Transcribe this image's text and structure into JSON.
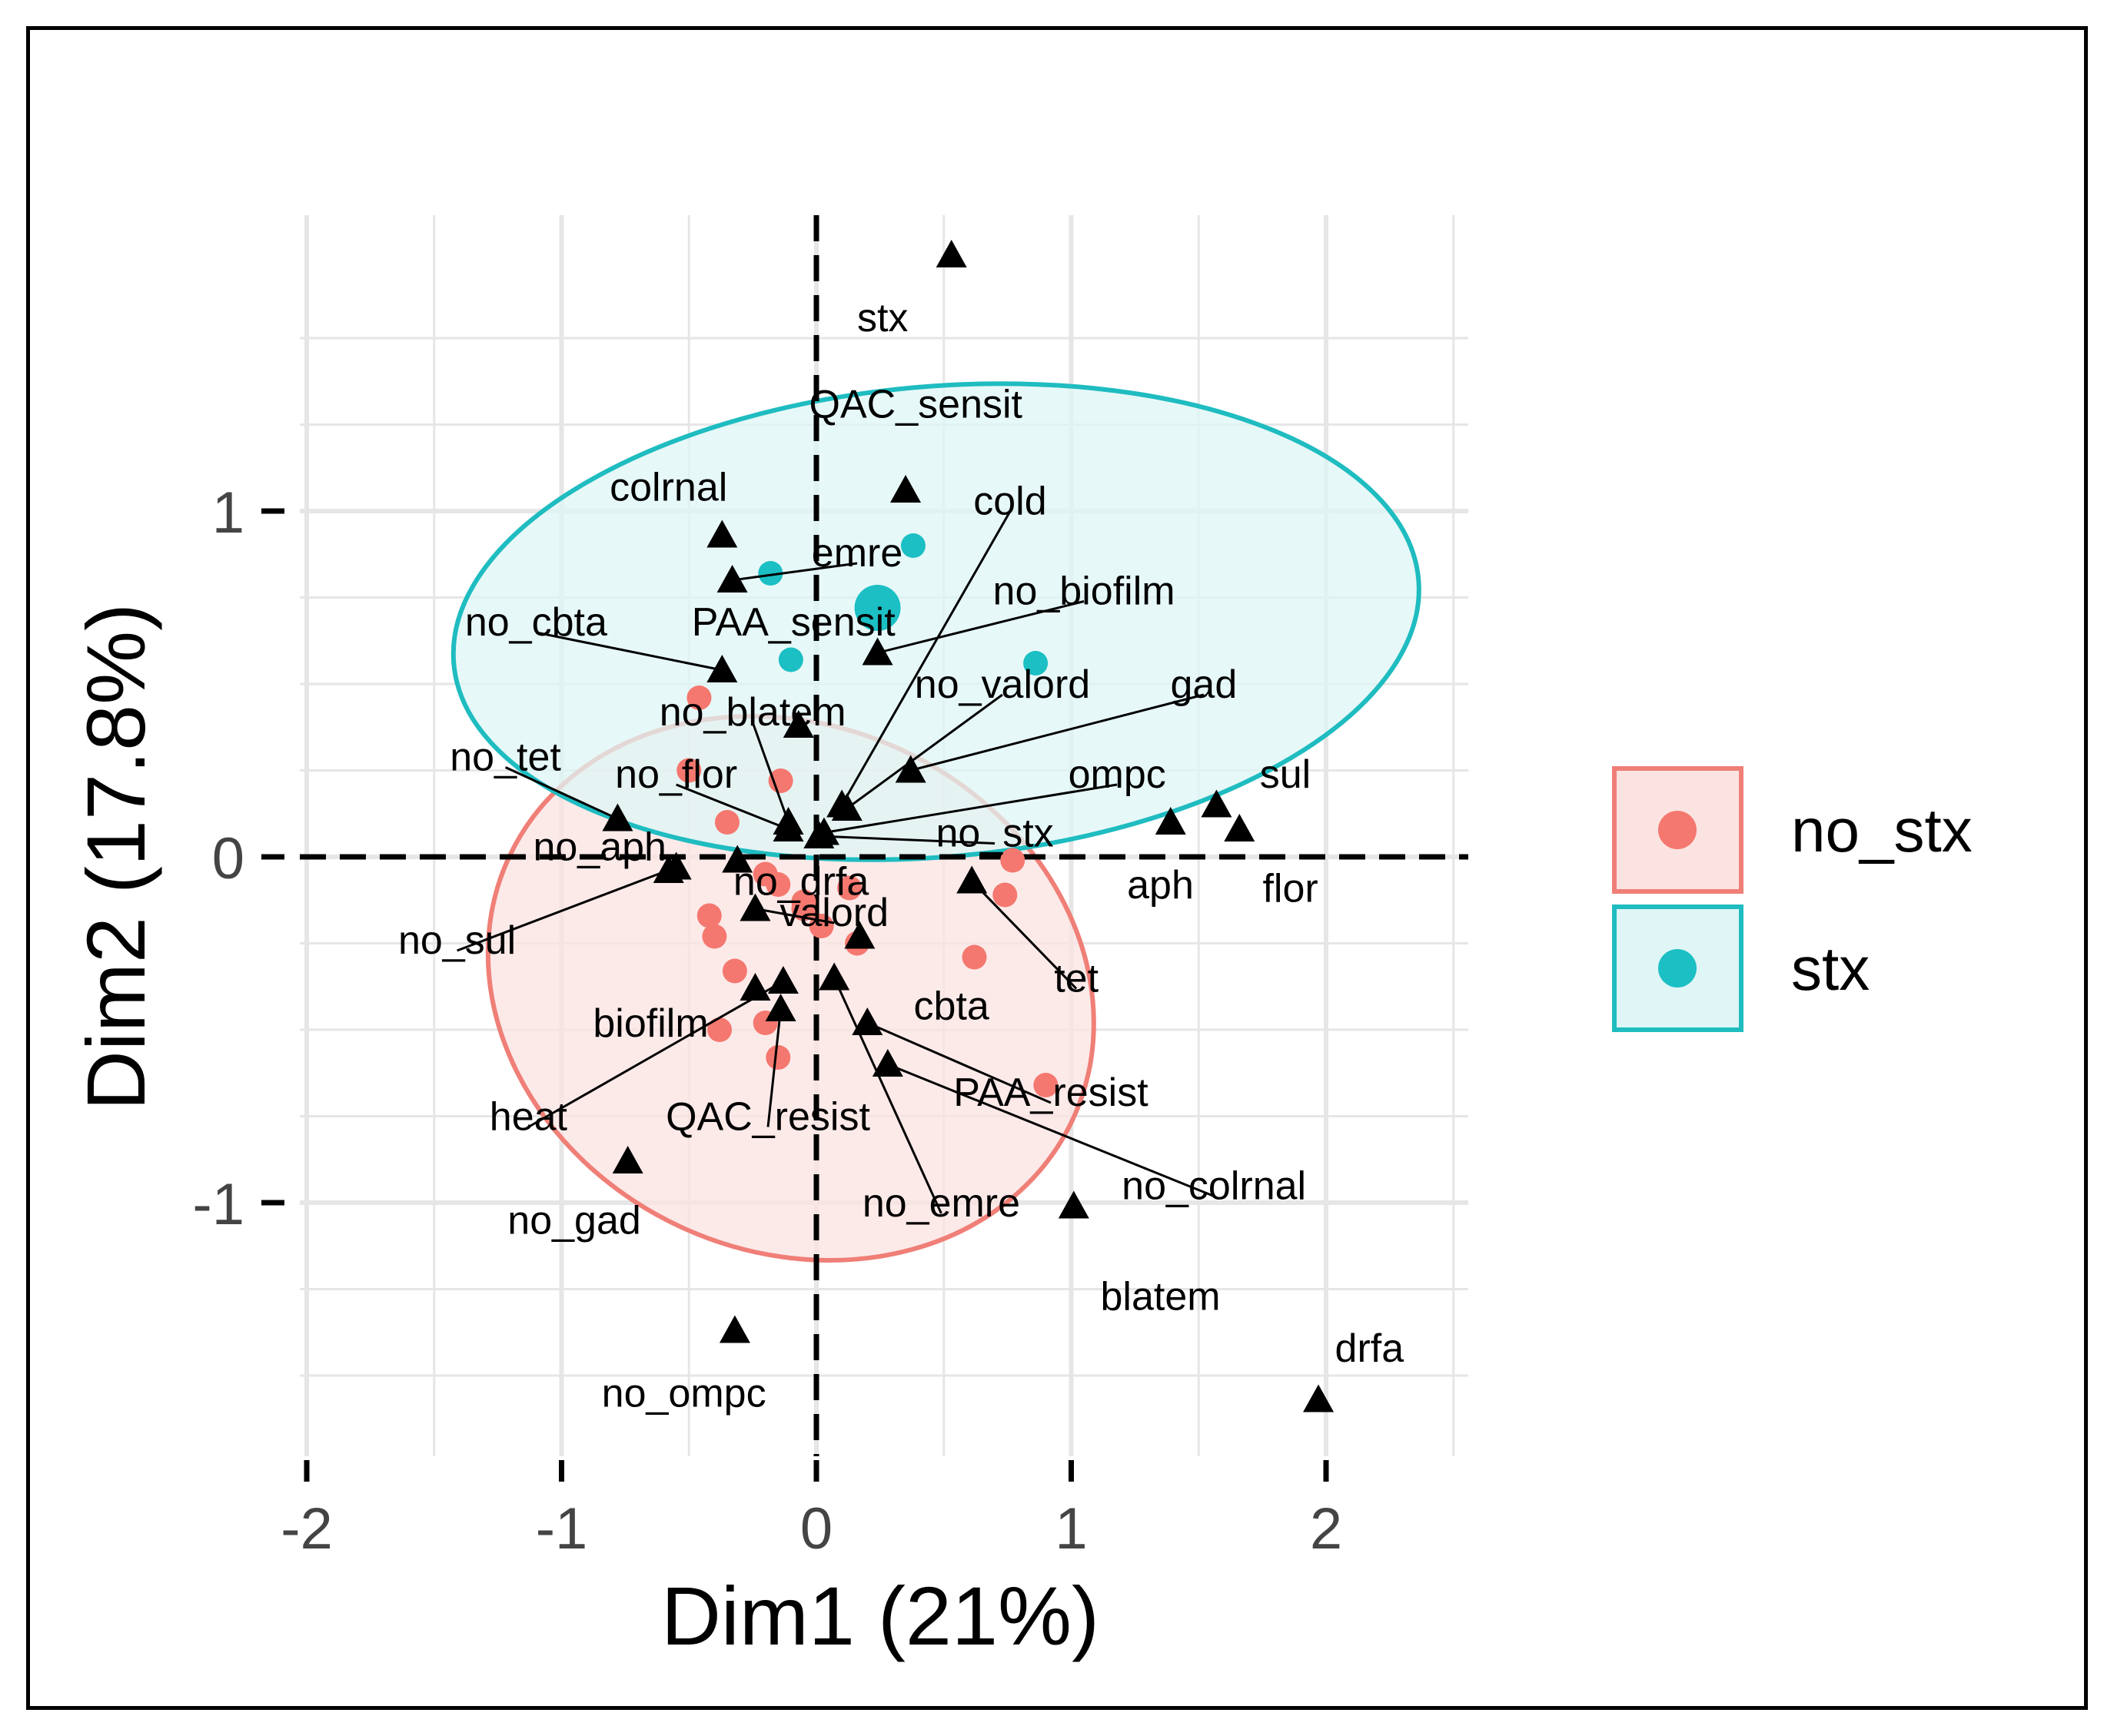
{
  "chart_data": {
    "type": "scatter",
    "title": "",
    "xlabel": "Dim1 (21%)",
    "ylabel": "Dim2 (17.8%)",
    "xlim": [
      -2.0,
      2.5
    ],
    "ylim": [
      -1.7,
      1.85
    ],
    "x_ticks": [
      "-2",
      "-1",
      "0",
      "1",
      "2"
    ],
    "x_tick_values": [
      -2,
      -1,
      0,
      1,
      2
    ],
    "y_ticks": [
      "-1",
      "0",
      "1"
    ],
    "y_tick_values": [
      -1,
      0,
      1
    ],
    "grid": true,
    "legend": {
      "position": "right",
      "entries": [
        {
          "label": "no_stx",
          "fill": "#fbe3e1",
          "stroke": "#ef7f77",
          "point": "#f4786f"
        },
        {
          "label": "stx",
          "fill": "#dff5f6",
          "stroke": "#1fbcc0",
          "point": "#1bbfc4"
        }
      ]
    },
    "groups": [
      {
        "name": "no_stx",
        "color": "#f4786f",
        "ellipse": {
          "cx": -0.1,
          "cy": -0.38,
          "rx": 1.22,
          "ry": 0.76,
          "angle_deg": 25
        },
        "points": [
          [
            -0.46,
            0.46
          ],
          [
            -0.5,
            0.25
          ],
          [
            -0.35,
            0.1
          ],
          [
            -0.14,
            0.22
          ],
          [
            -0.2,
            -0.05
          ],
          [
            -0.42,
            -0.17
          ],
          [
            -0.4,
            -0.23
          ],
          [
            -0.32,
            -0.33
          ],
          [
            -0.15,
            -0.08
          ],
          [
            -0.05,
            -0.13
          ],
          [
            0.02,
            -0.2
          ],
          [
            -0.05,
            -0.15
          ],
          [
            0.13,
            -0.09
          ],
          [
            0.16,
            -0.25
          ],
          [
            -0.2,
            -0.48
          ],
          [
            -0.38,
            -0.5
          ],
          [
            -0.15,
            -0.58
          ],
          [
            0.62,
            -0.29
          ],
          [
            0.74,
            -0.11
          ],
          [
            0.77,
            -0.01
          ],
          [
            0.9,
            -0.66
          ]
        ],
        "centroid": null
      },
      {
        "name": "stx",
        "color": "#1bbfc4",
        "ellipse": {
          "cx": 0.47,
          "cy": 0.68,
          "rx": 1.9,
          "ry": 0.68,
          "angle_deg": -5
        },
        "points": [
          [
            -0.18,
            0.82
          ],
          [
            0.38,
            0.9
          ],
          [
            0.86,
            0.56
          ],
          [
            -0.1,
            0.57
          ]
        ],
        "centroid": [
          0.24,
          0.72
        ]
      }
    ],
    "variables": [
      {
        "name": "stx",
        "x": 0.53,
        "y": 1.74,
        "lx": 0.26,
        "ly": 1.56
      },
      {
        "name": "QAC_sensit",
        "x": 0.35,
        "y": 1.06,
        "lx": 0.39,
        "ly": 1.31
      },
      {
        "name": "colrnal",
        "x": -0.37,
        "y": 0.93,
        "lx": -0.58,
        "ly": 1.07
      },
      {
        "name": "cold",
        "x": 0.1,
        "y": 0.15,
        "lx": 0.76,
        "ly": 1.03
      },
      {
        "name": "emre",
        "x": -0.33,
        "y": 0.8,
        "lx": 0.16,
        "ly": 0.88
      },
      {
        "name": "no_biofilm",
        "x": 0.24,
        "y": 0.59,
        "lx": 1.05,
        "ly": 0.77
      },
      {
        "name": "PAA_sensit",
        "x": -0.07,
        "y": 0.38,
        "lx": -0.09,
        "ly": 0.68
      },
      {
        "name": "no_cbta",
        "x": -0.37,
        "y": 0.54,
        "lx": -1.1,
        "ly": 0.68
      },
      {
        "name": "no_valord",
        "x": 0.12,
        "y": 0.14,
        "lx": 0.73,
        "ly": 0.5
      },
      {
        "name": "gad",
        "x": 0.37,
        "y": 0.25,
        "lx": 1.52,
        "ly": 0.5
      },
      {
        "name": "no_blatem",
        "x": -0.11,
        "y": 0.1,
        "lx": -0.25,
        "ly": 0.42
      },
      {
        "name": "no_tet",
        "x": -0.78,
        "y": 0.11,
        "lx": -1.22,
        "ly": 0.29
      },
      {
        "name": "no_flor",
        "x": -0.11,
        "y": 0.08,
        "lx": -0.55,
        "ly": 0.24
      },
      {
        "name": "ompc",
        "x": 0.03,
        "y": 0.07,
        "lx": 1.18,
        "ly": 0.24
      },
      {
        "name": "sul",
        "x": 1.57,
        "y": 0.15,
        "lx": 1.84,
        "ly": 0.24
      },
      {
        "name": "aph",
        "x": 1.39,
        "y": 0.1,
        "lx": 1.35,
        "ly": -0.08
      },
      {
        "name": "flor",
        "x": 1.66,
        "y": 0.08,
        "lx": 1.86,
        "ly": -0.09
      },
      {
        "name": "no_stx",
        "x": 0.01,
        "y": 0.06,
        "lx": 0.7,
        "ly": 0.07
      },
      {
        "name": "no_aph",
        "x": -0.58,
        "y": -0.04,
        "lx": -0.85,
        "ly": 0.03
      },
      {
        "name": "no_drfa",
        "x": -0.31,
        "y": -0.01,
        "lx": -0.06,
        "ly": -0.07
      },
      {
        "name": "valord",
        "x": -0.24,
        "y": -0.15,
        "lx": 0.07,
        "ly": -0.16
      },
      {
        "name": "no_sul",
        "x": -0.55,
        "y": -0.03,
        "lx": -1.41,
        "ly": -0.24
      },
      {
        "name": "tet",
        "x": 0.61,
        "y": -0.07,
        "lx": 1.02,
        "ly": -0.35
      },
      {
        "name": "cbta",
        "x": 0.17,
        "y": -0.23,
        "lx": 0.53,
        "ly": -0.43
      },
      {
        "name": "biofilm",
        "x": -0.24,
        "y": -0.38,
        "lx": -0.65,
        "ly": -0.48
      },
      {
        "name": "heat",
        "x": -0.13,
        "y": -0.36,
        "lx": -1.13,
        "ly": -0.75
      },
      {
        "name": "QAC_resist",
        "x": -0.14,
        "y": -0.44,
        "lx": -0.19,
        "ly": -0.75
      },
      {
        "name": "PAA_resist",
        "x": 0.2,
        "y": -0.48,
        "lx": 0.92,
        "ly": -0.68
      },
      {
        "name": "no_colrnal",
        "x": 0.28,
        "y": -0.6,
        "lx": 1.56,
        "ly": -0.95
      },
      {
        "name": "no_emre",
        "x": 0.07,
        "y": -0.35,
        "lx": 0.49,
        "ly": -1.0
      },
      {
        "name": "no_gad",
        "x": -0.74,
        "y": -0.88,
        "lx": -0.95,
        "ly": -1.05
      },
      {
        "name": "blatem",
        "x": 1.01,
        "y": -1.01,
        "lx": 1.35,
        "ly": -1.27
      },
      {
        "name": "drfa",
        "x": 1.97,
        "y": -1.57,
        "lx": 2.17,
        "ly": -1.42
      },
      {
        "name": "no_ompc",
        "x": -0.32,
        "y": -1.37,
        "lx": -0.52,
        "ly": -1.55
      }
    ],
    "connector_lines": [
      [
        "emre",
        0.16,
        0.88
      ],
      [
        "cold",
        0.76,
        1.03
      ],
      [
        "no_biofilm",
        1.05,
        0.77
      ],
      [
        "no_cbta",
        -1.1,
        0.68
      ],
      [
        "no_valord",
        0.73,
        0.5
      ],
      [
        "gad",
        1.52,
        0.5
      ],
      [
        "no_blatem",
        -0.25,
        0.42
      ],
      [
        "no_tet",
        -1.22,
        0.29
      ],
      [
        "no_flor",
        -0.55,
        0.24
      ],
      [
        "ompc",
        1.18,
        0.24
      ],
      [
        "no_stx",
        0.7,
        0.07
      ],
      [
        "no_sul",
        -1.41,
        -0.24
      ],
      [
        "tet",
        1.02,
        -0.35
      ],
      [
        "heat",
        -1.13,
        -0.75
      ],
      [
        "QAC_resist",
        -0.19,
        -0.75
      ],
      [
        "PAA_resist",
        0.92,
        -0.68
      ],
      [
        "no_colrnal",
        1.56,
        -0.95
      ],
      [
        "no_emre",
        0.49,
        -1.0
      ],
      [
        "valord",
        0.07,
        -0.16
      ]
    ]
  }
}
